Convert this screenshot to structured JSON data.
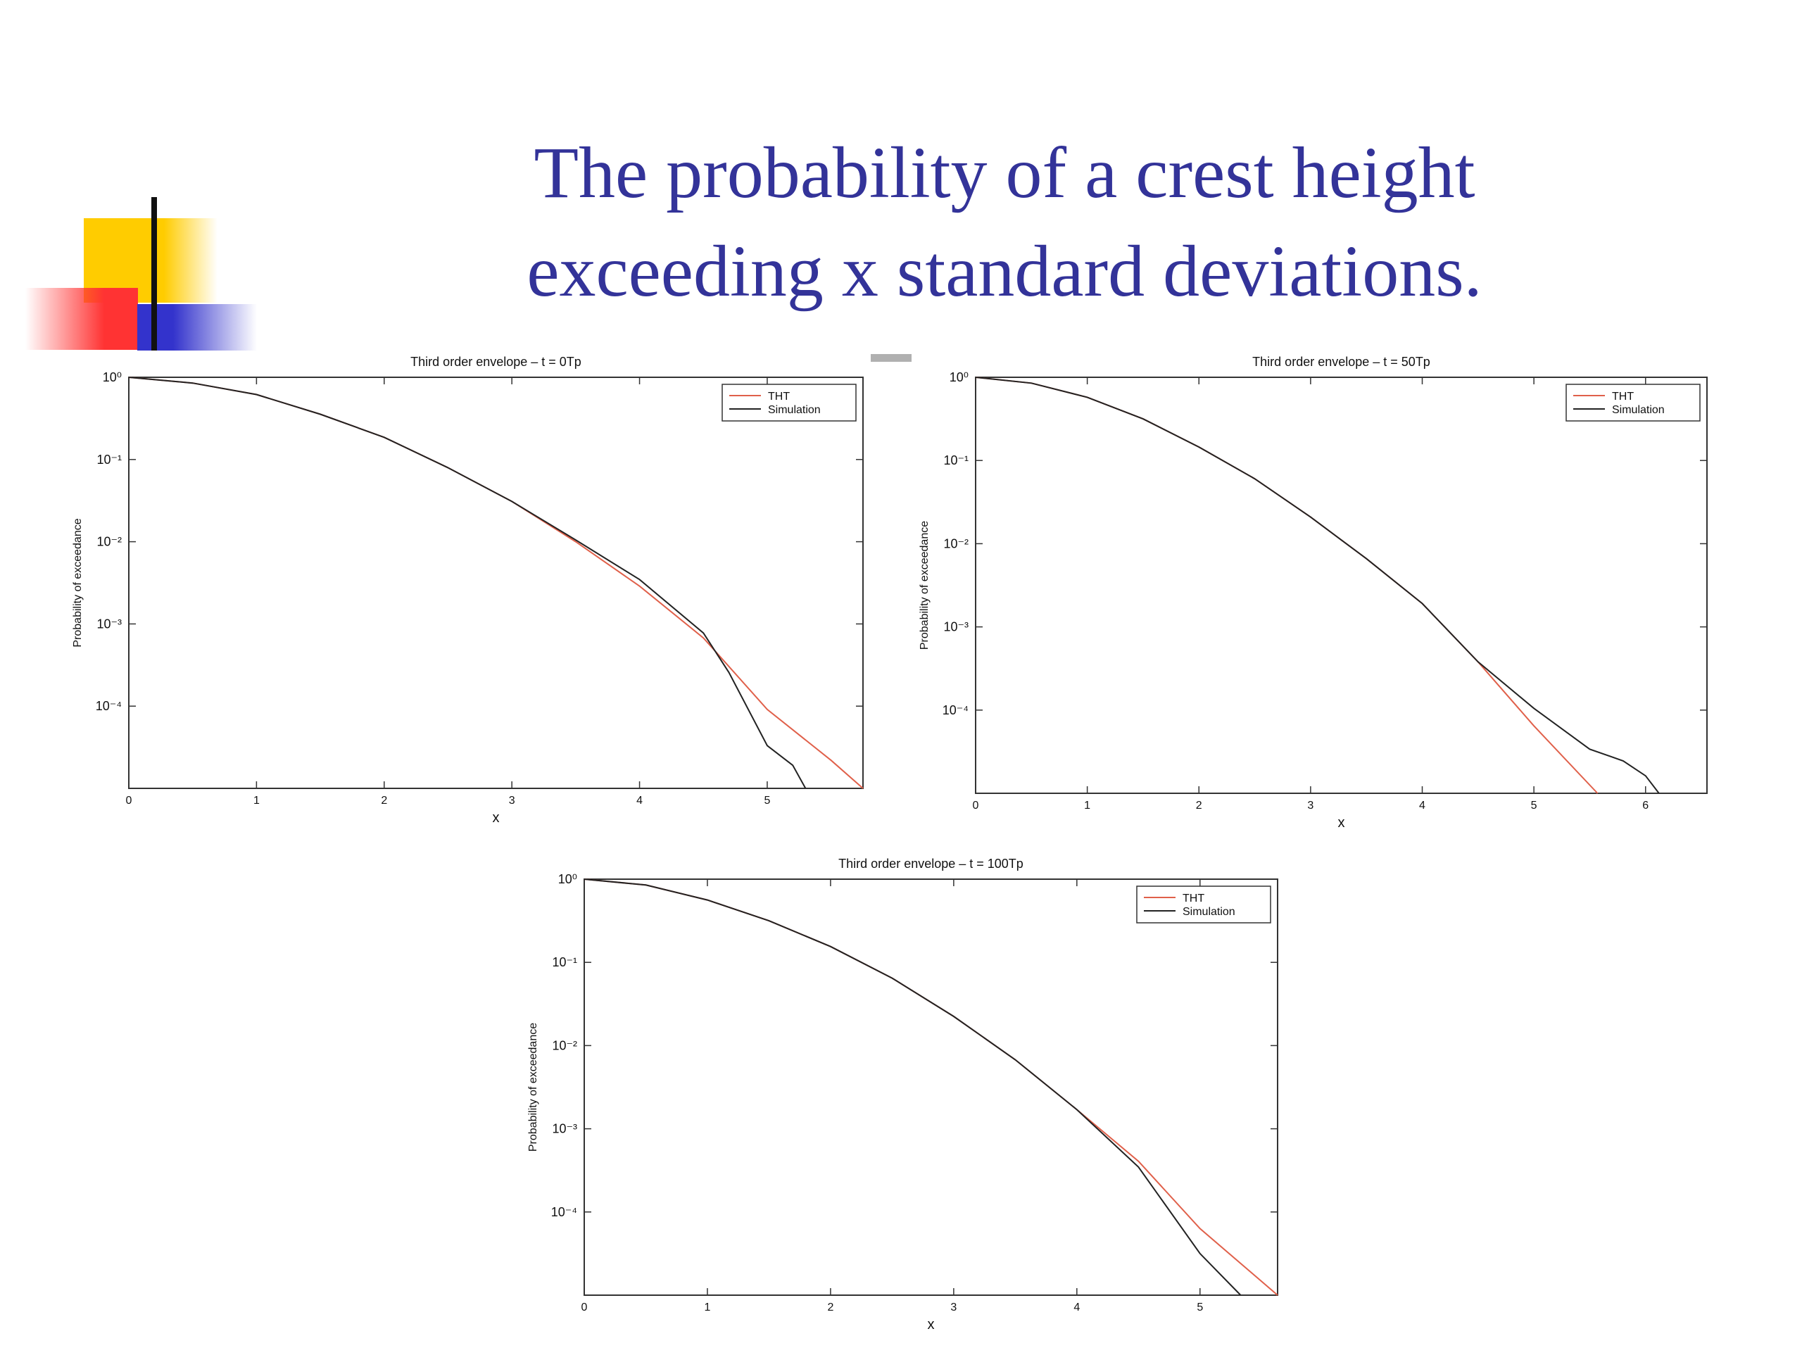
{
  "title": [
    "The probability of a crest height",
    "exceeding x standard deviations."
  ],
  "chart_data": [
    {
      "type": "line",
      "title": "Third order envelope – t = 0Tp",
      "xlabel": "x",
      "ylabel": "Probability of exceedance",
      "log_y": true,
      "legend": "upper right",
      "xlim": [
        0,
        5.75
      ],
      "ylim": [
        1e-05,
        1
      ],
      "xticks": [
        0,
        1,
        2,
        3,
        4,
        5
      ],
      "yticks": [
        {
          "value": 1,
          "label": "10⁰"
        },
        {
          "value": 0.1,
          "label": "10⁻¹"
        },
        {
          "value": 0.01,
          "label": "10⁻²"
        },
        {
          "value": 0.001,
          "label": "10⁻³"
        },
        {
          "value": 0.0001,
          "label": "10⁻⁴"
        }
      ],
      "series": [
        {
          "name": "THT",
          "color": "#e0604a",
          "x": [
            0,
            0.5,
            1,
            1.5,
            2,
            2.5,
            3,
            3.5,
            4,
            4.5,
            5,
            5.5,
            5.75
          ],
          "values": [
            1,
            0.851,
            0.617,
            0.355,
            0.186,
            0.0794,
            0.0309,
            0.01,
            0.00288,
            0.000676,
            9.12e-05,
            2.19e-05,
            1e-05
          ]
        },
        {
          "name": "Simulation",
          "color": "#222222",
          "x": [
            0,
            0.5,
            1,
            1.5,
            2,
            2.5,
            3,
            3.5,
            4,
            4.5,
            4.7,
            5,
            5.2,
            5.3
          ],
          "values": [
            1,
            0.851,
            0.617,
            0.355,
            0.186,
            0.0794,
            0.0309,
            0.0105,
            0.00347,
            0.000776,
            0.000257,
            3.31e-05,
            1.91e-05,
            1e-05
          ]
        }
      ]
    },
    {
      "type": "line",
      "title": "Third order envelope – t = 50Tp",
      "xlabel": "x",
      "ylabel": "Probability of exceedance",
      "log_y": true,
      "legend": "upper right",
      "xlim": [
        0,
        6.55
      ],
      "ylim": [
        1e-05,
        1
      ],
      "xticks": [
        0,
        1,
        2,
        3,
        4,
        5,
        6
      ],
      "yticks": [
        {
          "value": 1,
          "label": "10⁰"
        },
        {
          "value": 0.1,
          "label": "10⁻¹"
        },
        {
          "value": 0.01,
          "label": "10⁻²"
        },
        {
          "value": 0.001,
          "label": "10⁻³"
        },
        {
          "value": 0.0001,
          "label": "10⁻⁴"
        }
      ],
      "series": [
        {
          "name": "THT",
          "color": "#e0604a",
          "x": [
            0,
            0.5,
            1,
            1.5,
            2,
            2.5,
            3,
            3.5,
            4,
            4.5,
            5,
            5.57
          ],
          "values": [
            1,
            0.851,
            0.575,
            0.316,
            0.145,
            0.0603,
            0.0209,
            0.00661,
            0.00191,
            0.00038,
            6.46e-05,
            1e-05
          ]
        },
        {
          "name": "Simulation",
          "color": "#222222",
          "x": [
            0,
            0.5,
            1,
            1.5,
            2,
            2.5,
            3,
            3.5,
            4,
            4.5,
            5,
            5.5,
            5.8,
            6,
            6.12
          ],
          "values": [
            1,
            0.851,
            0.575,
            0.316,
            0.145,
            0.0603,
            0.0209,
            0.00661,
            0.00191,
            0.00038,
            0.000105,
            3.39e-05,
            2.45e-05,
            1.62e-05,
            1e-05
          ]
        }
      ]
    },
    {
      "type": "line",
      "title": "Third order envelope – t = 100Tp",
      "xlabel": "x",
      "ylabel": "Probability of exceedance",
      "log_y": true,
      "legend": "upper right",
      "xlim": [
        0,
        5.63
      ],
      "ylim": [
        1e-05,
        1
      ],
      "xticks": [
        0,
        1,
        2,
        3,
        4,
        5
      ],
      "yticks": [
        {
          "value": 1,
          "label": "10⁰"
        },
        {
          "value": 0.1,
          "label": "10⁻¹"
        },
        {
          "value": 0.01,
          "label": "10⁻²"
        },
        {
          "value": 0.001,
          "label": "10⁻³"
        },
        {
          "value": 0.0001,
          "label": "10⁻⁴"
        }
      ],
      "series": [
        {
          "name": "THT",
          "color": "#e0604a",
          "x": [
            0,
            0.5,
            1,
            1.5,
            2,
            2.5,
            3,
            3.5,
            4,
            4.5,
            5,
            5.63
          ],
          "values": [
            1,
            0.851,
            0.562,
            0.316,
            0.155,
            0.0646,
            0.0224,
            0.00676,
            0.0017,
            0.000407,
            6.31e-05,
            1e-05
          ]
        },
        {
          "name": "Simulation",
          "color": "#222222",
          "x": [
            0,
            0.5,
            1,
            1.5,
            2,
            2.5,
            3,
            3.5,
            4,
            4.5,
            5,
            5.33
          ],
          "values": [
            1,
            0.851,
            0.562,
            0.316,
            0.155,
            0.0646,
            0.0224,
            0.00676,
            0.0017,
            0.000347,
            3.16e-05,
            1e-05
          ]
        }
      ]
    }
  ]
}
